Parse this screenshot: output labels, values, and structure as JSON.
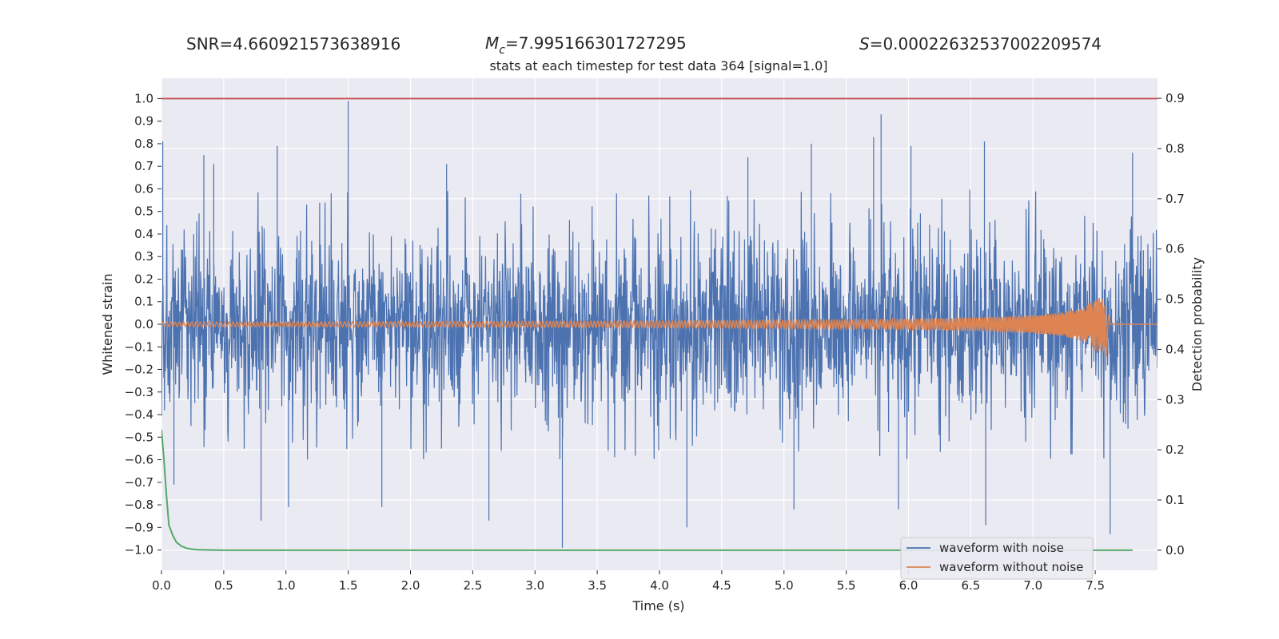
{
  "header": {
    "snr_label": "SNR=4.660921573638916",
    "mc_symbol": "M",
    "mc_sub": "c",
    "mc_value": "=7.995166301727295",
    "s_symbol": "S",
    "s_value": "=0.00022632537002209574"
  },
  "chart_data": {
    "type": "line",
    "title": "stats at each timestep for test data 364 [signal=1.0]",
    "xlabel": "Time (s)",
    "ylabel": "Whitened strain",
    "y2label": "Detection probability",
    "xlim": [
      0.0,
      8.0
    ],
    "ylim": [
      -1.09,
      1.09
    ],
    "y2lim": [
      -0.04,
      0.94
    ],
    "x_ticks": [
      "0.0",
      "0.5",
      "1.0",
      "1.5",
      "2.0",
      "2.5",
      "3.0",
      "3.5",
      "4.0",
      "4.5",
      "5.0",
      "5.5",
      "6.0",
      "6.5",
      "7.0",
      "7.5"
    ],
    "y_ticks": [
      "1.0",
      "0.9",
      "0.8",
      "0.7",
      "0.6",
      "0.5",
      "0.4",
      "0.3",
      "0.2",
      "0.1",
      "0.0",
      "−0.1",
      "−0.2",
      "−0.3",
      "−0.4",
      "−0.5",
      "−0.6",
      "−0.7",
      "−0.8",
      "−0.9",
      "−1.0"
    ],
    "y2_ticks": [
      "0.9",
      "0.8",
      "0.7",
      "0.6",
      "0.5",
      "0.4",
      "0.3",
      "0.2",
      "0.1",
      "0.0"
    ],
    "grid": true,
    "legend_position": "lower-right",
    "colors": {
      "noisy": "#4c72b0",
      "clean": "#dd8452",
      "probability": "#55a868",
      "threshold": "#c44e52",
      "background": "#eaeaf2",
      "grid": "#ffffff"
    },
    "threshold": 1.0,
    "series": [
      {
        "name": "waveform with noise",
        "axis": "left",
        "pattern": "noise",
        "peaks": [
          {
            "x": 0.01,
            "y": 0.81
          },
          {
            "x": 0.34,
            "y": 0.75
          },
          {
            "x": 0.42,
            "y": 0.71
          },
          {
            "x": 0.93,
            "y": 0.79
          },
          {
            "x": 1.5,
            "y": 0.99
          },
          {
            "x": 2.29,
            "y": 0.71
          },
          {
            "x": 4.71,
            "y": 0.74
          },
          {
            "x": 5.22,
            "y": 0.8
          },
          {
            "x": 5.72,
            "y": 0.83
          },
          {
            "x": 5.78,
            "y": 0.93
          },
          {
            "x": 6.02,
            "y": 0.79
          },
          {
            "x": 6.61,
            "y": 0.81
          },
          {
            "x": 7.8,
            "y": 0.76
          },
          {
            "x": 0.1,
            "y": -0.71
          },
          {
            "x": 0.8,
            "y": -0.87
          },
          {
            "x": 1.02,
            "y": -0.81
          },
          {
            "x": 1.77,
            "y": -0.81
          },
          {
            "x": 2.63,
            "y": -0.87
          },
          {
            "x": 3.22,
            "y": -0.99
          },
          {
            "x": 4.22,
            "y": -0.9
          },
          {
            "x": 5.08,
            "y": -0.82
          },
          {
            "x": 5.92,
            "y": -0.82
          },
          {
            "x": 6.62,
            "y": -0.89
          },
          {
            "x": 7.62,
            "y": -0.93
          }
        ]
      },
      {
        "name": "waveform without noise",
        "axis": "left",
        "pattern": "chirp",
        "merger_time": 7.59,
        "merger_amplitude": 0.12,
        "initial_amplitude": 0.01
      },
      {
        "name": "",
        "axis": "right",
        "x": [
          0.0,
          0.02,
          0.04,
          0.06,
          0.09,
          0.12,
          0.16,
          0.2,
          0.25,
          0.3,
          0.5,
          1.0,
          2.0,
          3.0,
          4.0,
          5.0,
          6.0,
          7.0,
          7.8
        ],
        "values": [
          0.24,
          0.18,
          0.11,
          0.05,
          0.03,
          0.016,
          0.008,
          0.004,
          0.002,
          0.001,
          0.0,
          0.0,
          0.0,
          0.0,
          0.0,
          0.0,
          0.0,
          0.0,
          0.0
        ]
      }
    ]
  }
}
